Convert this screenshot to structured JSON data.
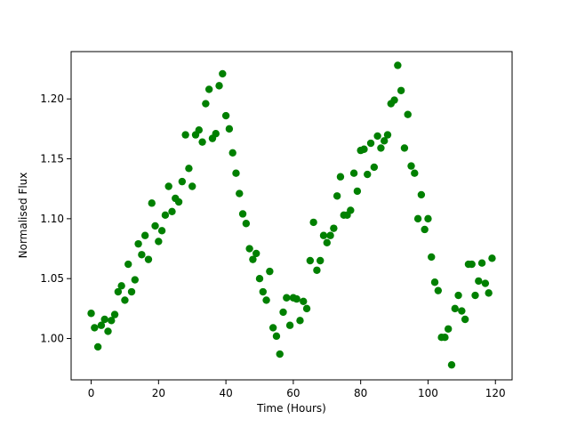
{
  "chart_data": {
    "type": "scatter",
    "xlabel": "Time (Hours)",
    "ylabel": "Normalised Flux",
    "color": "#008000",
    "x": [
      0,
      1,
      2,
      3,
      4,
      5,
      6,
      7,
      8,
      9,
      10,
      11,
      12,
      13,
      14,
      15,
      16,
      17,
      18,
      19,
      20,
      21,
      22,
      23,
      24,
      25,
      26,
      27,
      28,
      29,
      30,
      31,
      32,
      33,
      34,
      35,
      36,
      37,
      38,
      39,
      40,
      41,
      42,
      43,
      44,
      45,
      46,
      47,
      48,
      49,
      50,
      51,
      52,
      53,
      54,
      55,
      56,
      57,
      58,
      59,
      60,
      61,
      62,
      63,
      64,
      65,
      66,
      67,
      68,
      69,
      70,
      71,
      72,
      73,
      74,
      75,
      76,
      77,
      78,
      79,
      80,
      81,
      82,
      83,
      84,
      85,
      86,
      87,
      88,
      89,
      90,
      91,
      92,
      93,
      94,
      95,
      96,
      97,
      98,
      99,
      100,
      101,
      102,
      103,
      104,
      105,
      106,
      107,
      108,
      109,
      110,
      111,
      112,
      113,
      114,
      115,
      116,
      117,
      118,
      119
    ],
    "values": [
      1.021,
      1.009,
      0.993,
      1.011,
      1.016,
      1.006,
      1.015,
      1.02,
      1.039,
      1.044,
      1.032,
      1.062,
      1.039,
      1.049,
      1.079,
      1.07,
      1.086,
      1.066,
      1.113,
      1.094,
      1.081,
      1.09,
      1.103,
      1.127,
      1.106,
      1.117,
      1.114,
      1.131,
      1.17,
      1.142,
      1.127,
      1.17,
      1.174,
      1.164,
      1.196,
      1.208,
      1.167,
      1.171,
      1.211,
      1.221,
      1.186,
      1.175,
      1.155,
      1.138,
      1.121,
      1.104,
      1.096,
      1.075,
      1.066,
      1.071,
      1.05,
      1.039,
      1.032,
      1.056,
      1.009,
      1.002,
      0.987,
      1.022,
      1.034,
      1.011,
      1.034,
      1.033,
      1.015,
      1.031,
      1.025,
      1.065,
      1.097,
      1.057,
      1.065,
      1.086,
      1.08,
      1.086,
      1.092,
      1.119,
      1.135,
      1.103,
      1.103,
      1.107,
      1.138,
      1.123,
      1.157,
      1.158,
      1.137,
      1.163,
      1.143,
      1.169,
      1.159,
      1.165,
      1.17,
      1.196,
      1.199,
      1.228,
      1.207,
      1.159,
      1.187,
      1.144,
      1.138,
      1.1,
      1.12,
      1.091,
      1.1,
      1.068,
      1.047,
      1.04,
      1.001,
      1.001,
      1.008,
      0.978,
      1.025,
      1.036,
      1.023,
      1.016,
      1.062,
      1.062,
      1.036,
      1.048,
      1.063,
      1.046,
      1.038,
      1.067
    ],
    "xlim": [
      -5.95,
      124.95
    ],
    "ylim": [
      0.9655,
      1.2395
    ],
    "xticks": [
      0,
      20,
      40,
      60,
      80,
      100,
      120
    ],
    "yticks": [
      {
        "value": 1.0,
        "label": "1.00"
      },
      1.05,
      {
        "value": 1.1,
        "label": "1.10"
      },
      1.15,
      {
        "value": 1.2,
        "label": "1.20"
      }
    ]
  }
}
